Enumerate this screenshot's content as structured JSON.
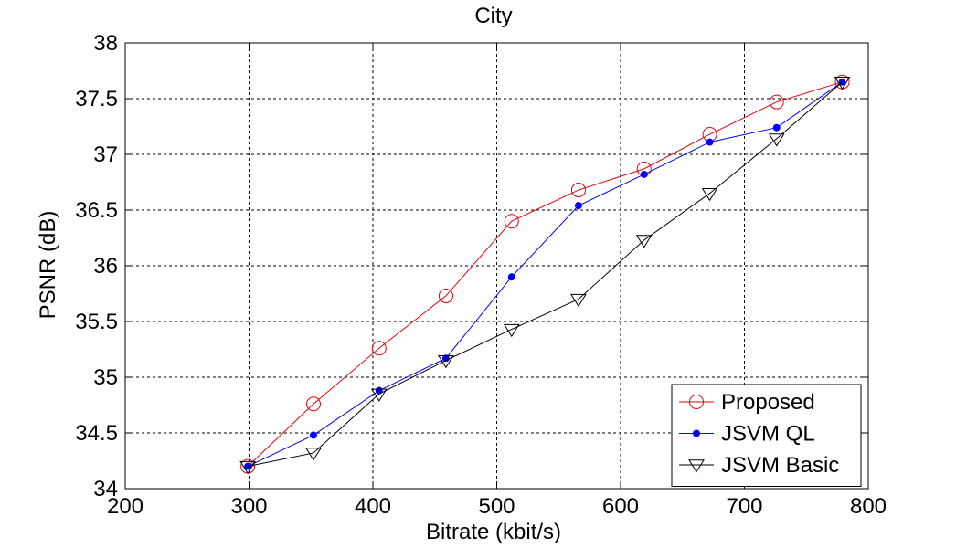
{
  "chart_data": {
    "type": "line",
    "title": "City",
    "xlabel": "Bitrate (kbit/s)",
    "ylabel": "PSNR (dB)",
    "xlim": [
      200,
      800
    ],
    "ylim": [
      34,
      38
    ],
    "xticks": [
      "200",
      "300",
      "400",
      "500",
      "600",
      "700",
      "800"
    ],
    "yticks": [
      "34",
      "34.5",
      "35",
      "35.5",
      "36",
      "36.5",
      "37",
      "37.5",
      "38"
    ],
    "grid": true,
    "legend_position": "bottom-right",
    "series": [
      {
        "name": "Proposed",
        "color": "#e8000b",
        "marker": "circle",
        "x": [
          299,
          352,
          405,
          459,
          512,
          566,
          619,
          672,
          726,
          779
        ],
        "y": [
          34.2,
          34.76,
          35.26,
          35.73,
          36.4,
          36.68,
          36.87,
          37.18,
          37.47,
          37.65
        ]
      },
      {
        "name": "JSVM QL",
        "color": "#0000ff",
        "marker": "dot",
        "x": [
          299,
          352,
          405,
          459,
          512,
          566,
          619,
          672,
          726,
          779
        ],
        "y": [
          34.2,
          34.48,
          34.88,
          35.17,
          35.9,
          36.54,
          36.82,
          37.11,
          37.24,
          37.65
        ]
      },
      {
        "name": "JSVM Basic",
        "color": "#000000",
        "marker": "triangle-down",
        "x": [
          299,
          352,
          405,
          459,
          512,
          566,
          619,
          672,
          726,
          779
        ],
        "y": [
          34.2,
          34.32,
          34.85,
          35.15,
          35.43,
          35.7,
          36.23,
          36.65,
          37.14,
          37.65
        ]
      }
    ]
  }
}
